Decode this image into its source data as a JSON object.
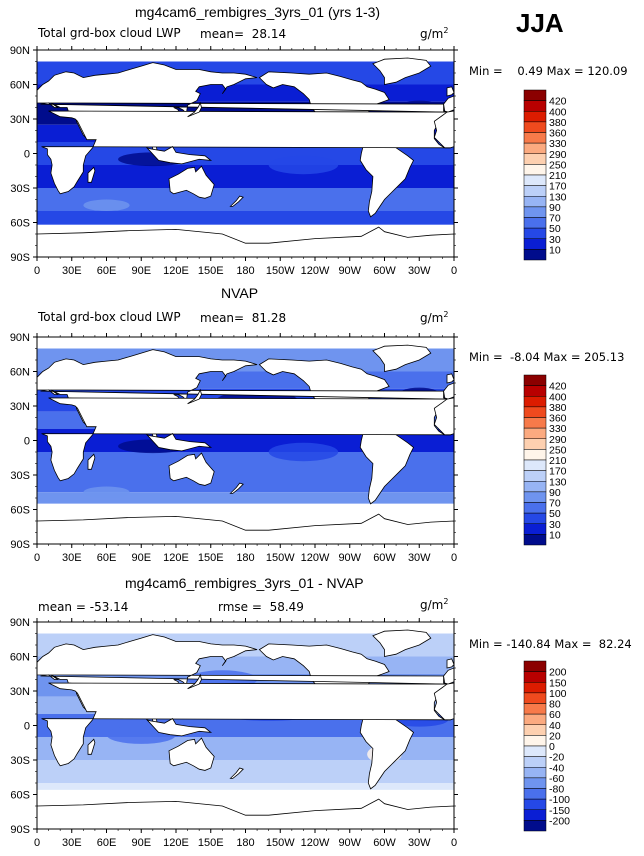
{
  "season": "JJA",
  "panels": [
    {
      "title": "mg4cam6_rembigres_3yrs_01 (yrs 1-3)",
      "left_label": "Total grd-box cloud LWP",
      "stat_label": "mean=",
      "stat_value": "28.14",
      "stat2_label": "",
      "stat2_value": "",
      "units": "g/m",
      "units_sup": "2",
      "min_label": "Min =",
      "min_value": "0.49",
      "max_label": "Max =",
      "max_value": "120.09",
      "colorbar_labels": [
        "420",
        "400",
        "380",
        "360",
        "330",
        "290",
        "250",
        "210",
        "170",
        "130",
        "90",
        "70",
        "50",
        "30",
        "10"
      ],
      "colorbar_colors": [
        "#8b0000",
        "#b80000",
        "#dc1c00",
        "#ef4a1e",
        "#f77a4a",
        "#fbaa80",
        "#fdd0b0",
        "#fff5ea",
        "#dde8fb",
        "#bcd0f8",
        "#97b4f4",
        "#6f94ef",
        "#4a70ec",
        "#2548e6",
        "#0a1ed4",
        "#000c8c"
      ]
    },
    {
      "title": "NVAP",
      "left_label": "Total grd-box cloud LWP",
      "stat_label": "mean=",
      "stat_value": "81.28",
      "stat2_label": "",
      "stat2_value": "",
      "units": "g/m",
      "units_sup": "2",
      "min_label": "Min =",
      "min_value": "-8.04",
      "max_label": "Max =",
      "max_value": "205.13",
      "colorbar_labels": [
        "420",
        "400",
        "380",
        "360",
        "330",
        "290",
        "250",
        "210",
        "170",
        "130",
        "90",
        "70",
        "50",
        "30",
        "10"
      ],
      "colorbar_colors": [
        "#8b0000",
        "#b80000",
        "#dc1c00",
        "#ef4a1e",
        "#f77a4a",
        "#fbaa80",
        "#fdd0b0",
        "#fff5ea",
        "#dde8fb",
        "#bcd0f8",
        "#97b4f4",
        "#6f94ef",
        "#4a70ec",
        "#2548e6",
        "#0a1ed4",
        "#000c8c"
      ]
    },
    {
      "title": "mg4cam6_rembigres_3yrs_01 - NVAP",
      "left_label": "",
      "stat_label": "mean =",
      "stat_value": "-53.14",
      "stat2_label": "rmse =",
      "stat2_value": "58.49",
      "units": "g/m",
      "units_sup": "2",
      "min_label": "Min =",
      "min_value": "-140.84",
      "max_label": "Max =",
      "max_value": "82.24",
      "colorbar_labels": [
        "200",
        "150",
        "100",
        "80",
        "60",
        "40",
        "20",
        "0",
        "-20",
        "-40",
        "-60",
        "-80",
        "-100",
        "-150",
        "-200"
      ],
      "colorbar_colors": [
        "#8b0000",
        "#b80000",
        "#dc1c00",
        "#ef4a1e",
        "#f77a4a",
        "#fbaa80",
        "#fdd0b0",
        "#fff5ea",
        "#dde8fb",
        "#bcd0f8",
        "#97b4f4",
        "#6f94ef",
        "#4a70ec",
        "#2548e6",
        "#0a1ed4",
        "#000c8c"
      ]
    }
  ],
  "lat_ticks": [
    "90N",
    "60N",
    "30N",
    "0",
    "30S",
    "60S",
    "90S"
  ],
  "lon_ticks": [
    "0",
    "30E",
    "60E",
    "90E",
    "120E",
    "150E",
    "180",
    "150W",
    "120W",
    "90W",
    "60W",
    "30W",
    "0"
  ]
}
